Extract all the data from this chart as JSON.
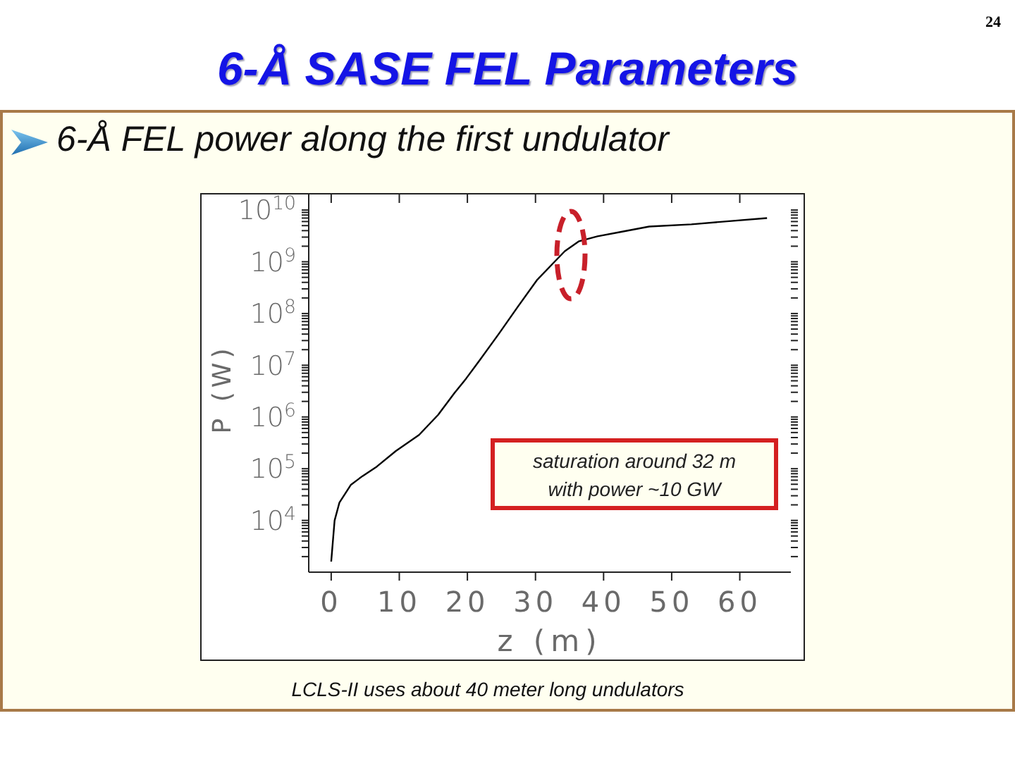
{
  "chart_data": {
    "type": "line",
    "title": "6-Å SASE FEL Parameters",
    "subtitle": "6-Å FEL power along the first undulator",
    "xlabel": "z (m)",
    "ylabel": "P (W)",
    "x": [
      0,
      0.5,
      1.2,
      2.9,
      4.6,
      6.7,
      9.5,
      12.9,
      15.7,
      18.1,
      19.8,
      21.9,
      24.7,
      27.4,
      30.2,
      32.2,
      34.3,
      36.4,
      39.1,
      42.6,
      46.7,
      52.9,
      57.8,
      64
    ],
    "series": [
      {
        "color": "#000000",
        "values": [
          1600,
          10000,
          22000,
          49000,
          72000,
          110000,
          220000,
          450000,
          1100000,
          2900000,
          5500000,
          13000000,
          42000000,
          135000000,
          440000000,
          830000000,
          1600000000,
          2500000000,
          3100000000,
          3800000000,
          4800000000,
          5300000000,
          6000000000,
          7000000000
        ]
      }
    ],
    "xlim": [
      -3.3,
      67.5
    ],
    "ylim": [
      1000,
      20000000000
    ],
    "xticks": [
      0,
      10,
      20,
      30,
      40,
      50,
      60
    ],
    "yticks": [
      {
        "value": 2000,
        "label": null
      },
      {
        "value": 3000,
        "label": null
      },
      {
        "value": 4000,
        "label": null
      },
      {
        "value": 5000,
        "label": null
      },
      {
        "value": 6000,
        "label": null
      },
      {
        "value": 7000,
        "label": null
      },
      {
        "value": 8000,
        "label": null
      },
      {
        "value": 9000,
        "label": null
      },
      {
        "value": 10000,
        "label": "10$^{4}$"
      },
      {
        "value": 20000,
        "label": null
      },
      {
        "value": 30000,
        "label": null
      },
      {
        "value": 40000,
        "label": null
      },
      {
        "value": 50000,
        "label": null
      },
      {
        "value": 60000,
        "label": null
      },
      {
        "value": 70000,
        "label": null
      },
      {
        "value": 80000,
        "label": null
      },
      {
        "value": 90000,
        "label": null
      },
      {
        "value": 100000,
        "label": "10$^{5}$"
      },
      {
        "value": 200000,
        "label": null
      },
      {
        "value": 300000,
        "label": null
      },
      {
        "value": 400000,
        "label": null
      },
      {
        "value": 500000,
        "label": null
      },
      {
        "value": 600000,
        "label": null
      },
      {
        "value": 700000,
        "label": null
      },
      {
        "value": 800000,
        "label": null
      },
      {
        "value": 900000,
        "label": null
      },
      {
        "value": 1000000,
        "label": "10$^{6}$"
      },
      {
        "value": 2000000,
        "label": null
      },
      {
        "value": 3000000,
        "label": null
      },
      {
        "value": 4000000,
        "label": null
      },
      {
        "value": 5000000,
        "label": null
      },
      {
        "value": 6000000,
        "label": null
      },
      {
        "value": 7000000,
        "label": null
      },
      {
        "value": 8000000,
        "label": null
      },
      {
        "value": 9000000,
        "label": null
      },
      {
        "value": 10000000,
        "label": "10$^{7}$"
      },
      {
        "value": 20000000,
        "label": null
      },
      {
        "value": 30000000,
        "label": null
      },
      {
        "value": 40000000,
        "label": null
      },
      {
        "value": 50000000,
        "label": null
      },
      {
        "value": 60000000,
        "label": null
      },
      {
        "value": 70000000,
        "label": null
      },
      {
        "value": 80000000,
        "label": null
      },
      {
        "value": 90000000,
        "label": null
      },
      {
        "value": 100000000,
        "label": "10$^{8}$"
      },
      {
        "value": 200000000,
        "label": null
      },
      {
        "value": 300000000,
        "label": null
      },
      {
        "value": 400000000,
        "label": null
      },
      {
        "value": 500000000,
        "label": null
      },
      {
        "value": 600000000,
        "label": null
      },
      {
        "value": 700000000,
        "label": null
      },
      {
        "value": 800000000,
        "label": null
      },
      {
        "value": 900000000,
        "label": null
      },
      {
        "value": 1000000000,
        "label": "10$^{9}$"
      },
      {
        "value": 2000000000,
        "label": null
      },
      {
        "value": 3000000000,
        "label": null
      },
      {
        "value": 4000000000,
        "label": null
      },
      {
        "value": 5000000000,
        "label": null
      },
      {
        "value": 6000000000,
        "label": null
      },
      {
        "value": 7000000000,
        "label": null
      },
      {
        "value": 8000000000,
        "label": null
      },
      {
        "value": 9000000000,
        "label": null
      },
      {
        "value": 10000000000,
        "label": "10$^{10}$"
      }
    ],
    "log": "y",
    "marker": "none",
    "line_style": "solid",
    "annotations": [
      "24",
      "saturation around 32 m with power ~10 GW",
      "LCLS-II uses about 40 meter long undulators"
    ]
  }
}
